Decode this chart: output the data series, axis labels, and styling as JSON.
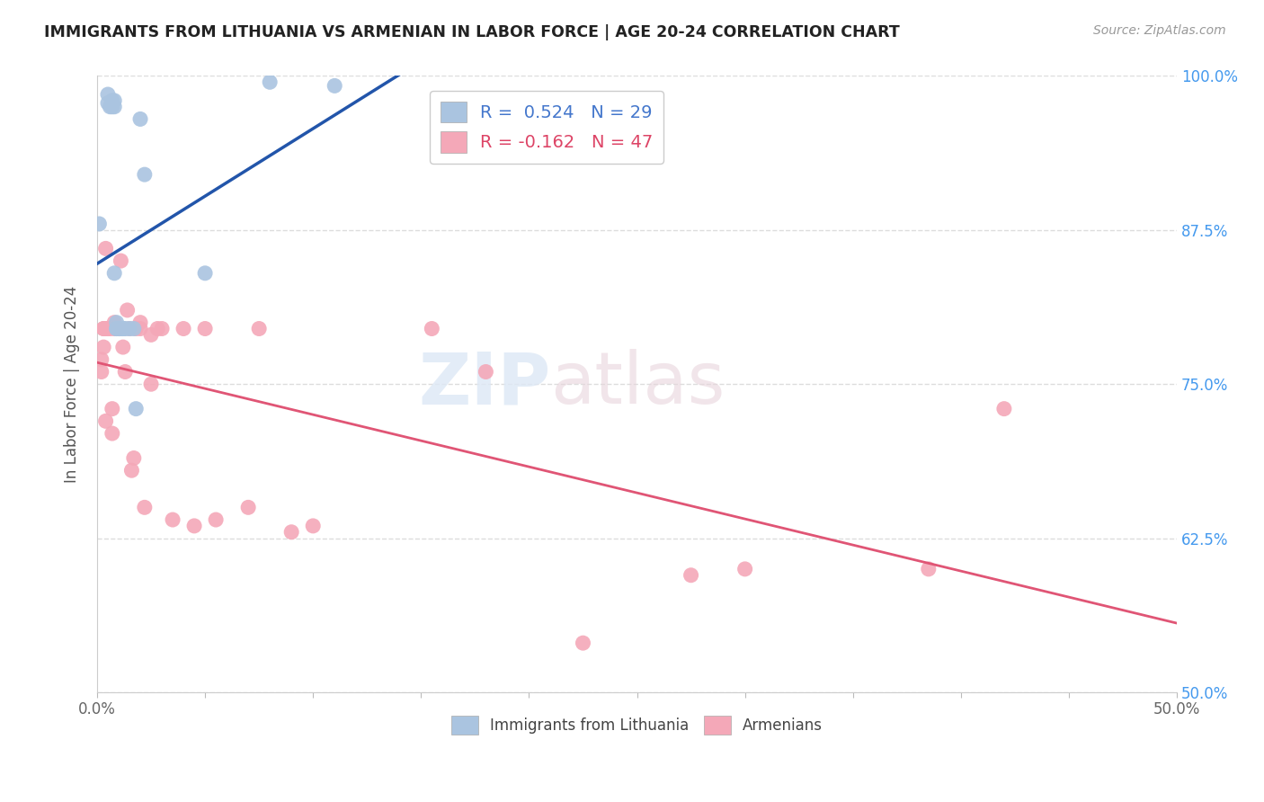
{
  "title": "IMMIGRANTS FROM LITHUANIA VS ARMENIAN IN LABOR FORCE | AGE 20-24 CORRELATION CHART",
  "source": "Source: ZipAtlas.com",
  "ylabel": "In Labor Force | Age 20-24",
  "xlim": [
    0.0,
    0.5
  ],
  "ylim": [
    0.5,
    1.0
  ],
  "xticks": [
    0.0,
    0.05,
    0.1,
    0.15,
    0.2,
    0.25,
    0.3,
    0.35,
    0.4,
    0.45,
    0.5
  ],
  "xticklabels_show": [
    "0.0%",
    "",
    "",
    "",
    "",
    "",
    "",
    "",
    "",
    "",
    "50.0%"
  ],
  "yticks": [
    0.5,
    0.625,
    0.75,
    0.875,
    1.0
  ],
  "yticklabels": [
    "50.0%",
    "62.5%",
    "75.0%",
    "87.5%",
    "100.0%"
  ],
  "legend_label_blue": "R =  0.524   N = 29",
  "legend_label_pink": "R = -0.162   N = 47",
  "legend_label_blue_bottom": "Immigrants from Lithuania",
  "legend_label_pink_bottom": "Armenians",
  "blue_color": "#aac4e0",
  "pink_color": "#f4a8b8",
  "blue_line_color": "#2255aa",
  "pink_line_color": "#e05575",
  "watermark_zip": "ZIP",
  "watermark_atlas": "atlas",
  "lithuania_x": [
    0.001,
    0.005,
    0.005,
    0.006,
    0.007,
    0.007,
    0.008,
    0.008,
    0.008,
    0.009,
    0.009,
    0.009,
    0.01,
    0.01,
    0.01,
    0.01,
    0.011,
    0.011,
    0.012,
    0.012,
    0.013,
    0.015,
    0.017,
    0.018,
    0.02,
    0.022,
    0.05,
    0.08,
    0.11
  ],
  "lithuania_y": [
    0.88,
    0.978,
    0.985,
    0.975,
    0.975,
    0.98,
    0.84,
    0.975,
    0.98,
    0.795,
    0.795,
    0.8,
    0.795,
    0.795,
    0.795,
    0.795,
    0.795,
    0.795,
    0.795,
    0.795,
    0.795,
    0.795,
    0.795,
    0.73,
    0.965,
    0.92,
    0.84,
    0.995,
    0.992
  ],
  "armenian_x": [
    0.002,
    0.002,
    0.003,
    0.003,
    0.003,
    0.004,
    0.004,
    0.004,
    0.005,
    0.006,
    0.007,
    0.007,
    0.008,
    0.008,
    0.009,
    0.01,
    0.011,
    0.012,
    0.013,
    0.014,
    0.015,
    0.016,
    0.017,
    0.018,
    0.02,
    0.02,
    0.022,
    0.025,
    0.025,
    0.028,
    0.03,
    0.035,
    0.04,
    0.045,
    0.05,
    0.055,
    0.07,
    0.075,
    0.09,
    0.1,
    0.155,
    0.18,
    0.225,
    0.275,
    0.3,
    0.385,
    0.42
  ],
  "armenian_y": [
    0.76,
    0.77,
    0.78,
    0.795,
    0.795,
    0.72,
    0.795,
    0.86,
    0.795,
    0.795,
    0.71,
    0.73,
    0.795,
    0.8,
    0.795,
    0.795,
    0.85,
    0.78,
    0.76,
    0.81,
    0.795,
    0.68,
    0.69,
    0.795,
    0.795,
    0.8,
    0.65,
    0.79,
    0.75,
    0.795,
    0.795,
    0.64,
    0.795,
    0.635,
    0.795,
    0.64,
    0.65,
    0.795,
    0.63,
    0.635,
    0.795,
    0.76,
    0.54,
    0.595,
    0.6,
    0.6,
    0.73
  ]
}
